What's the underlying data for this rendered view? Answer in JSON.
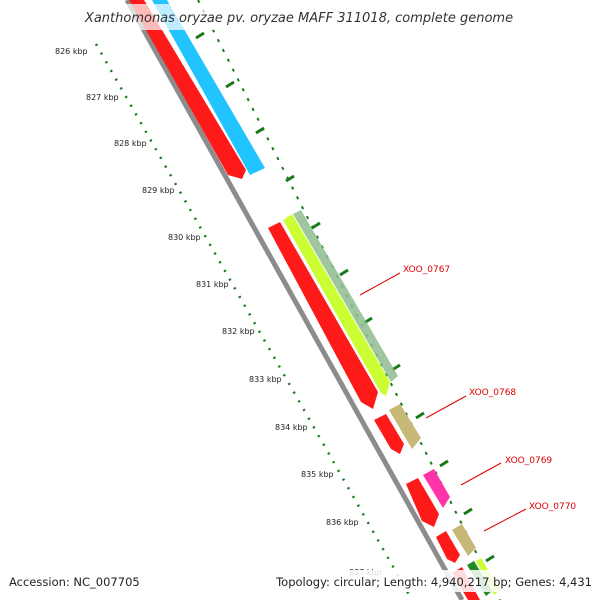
{
  "title": "Xanthomonas oryzae pv. oryzae MAFF 311018, complete genome",
  "ruler": {
    "tick_color": "#1a7a1a",
    "labels": [
      "826 kbp",
      "827 kbp",
      "828 kbp",
      "829 kbp",
      "830 kbp",
      "831 kbp",
      "832 kbp",
      "833 kbp",
      "834 kbp",
      "835 kbp",
      "836 kbp",
      "837 kbp"
    ]
  },
  "genes": [
    {
      "id": "XOO_0767",
      "strand": "outer",
      "color": "#ccff33"
    },
    {
      "id": "XOO_0768",
      "strand": "outer",
      "color": "#c8b878"
    },
    {
      "id": "XOO_0769",
      "strand": "outer",
      "color": "#ff33aa"
    },
    {
      "id": "XOO_0770",
      "strand": "outer",
      "color": "#c8b878"
    }
  ],
  "colors": {
    "forward_cds": "#ff1a1a",
    "reverse_cds": "#22c4ff",
    "backbone": "#8c8c8c",
    "label": "#e00000"
  },
  "footer": {
    "accession": "Accession: NC_007705",
    "topology": "Topology: circular; Length: 4,940,217 bp; Genes: 4,431"
  }
}
